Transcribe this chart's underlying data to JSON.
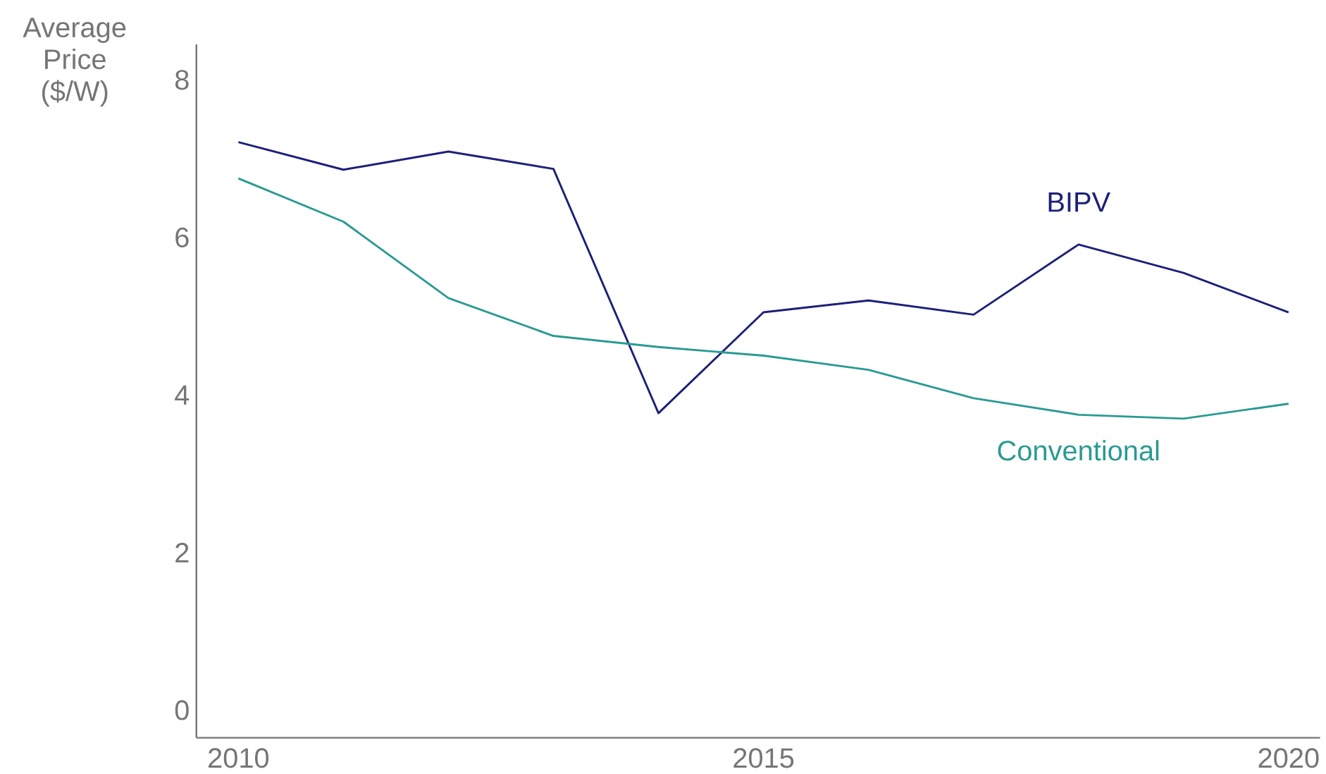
{
  "chart_data": {
    "type": "line",
    "ylabel": "Average Price ($/W)",
    "x": [
      2010,
      2011,
      2012,
      2013,
      2014,
      2015,
      2016,
      2017,
      2018,
      2019,
      2020
    ],
    "series": [
      {
        "name": "BIPV",
        "color": "#1c2078",
        "values": [
          7.21,
          6.86,
          7.09,
          6.87,
          3.77,
          5.05,
          5.2,
          5.02,
          5.91,
          5.55,
          5.05
        ]
      },
      {
        "name": "Conventional",
        "color": "#2a9a93",
        "values": [
          6.75,
          6.2,
          5.23,
          4.75,
          4.61,
          4.5,
          4.32,
          3.96,
          3.75,
          3.7,
          3.89
        ]
      }
    ],
    "xlim": [
      2009.6,
      2020.3
    ],
    "ylim": [
      -0.35,
      8.45
    ],
    "xticks": [
      2010,
      2015,
      2020
    ],
    "yticks": [
      0,
      2,
      4,
      6,
      8
    ],
    "grid": false,
    "marker": "none",
    "line_style": "solid"
  }
}
